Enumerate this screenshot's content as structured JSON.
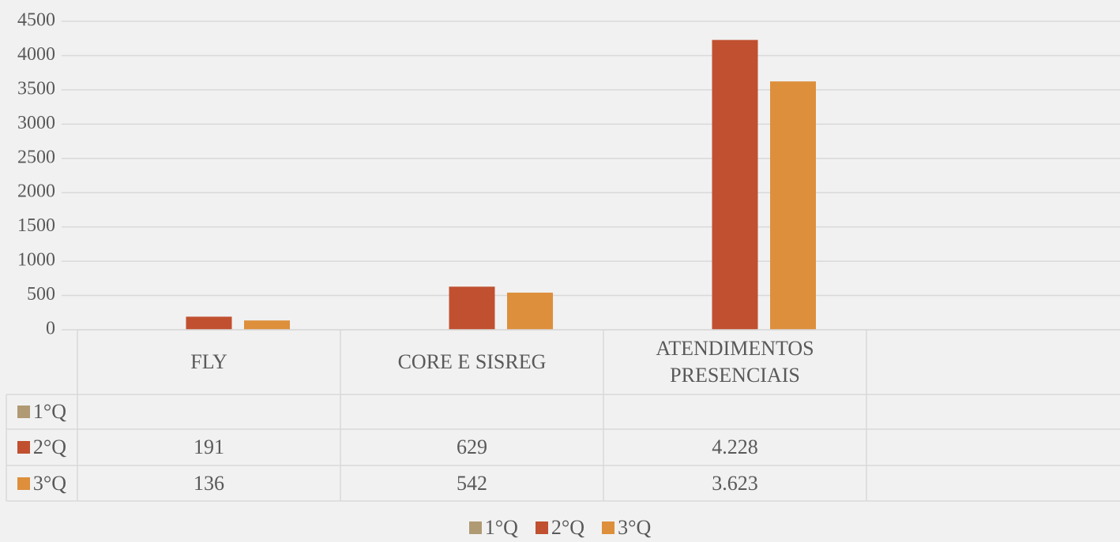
{
  "chart_data": {
    "type": "bar",
    "categories": [
      "FLY",
      "CORE E SISREG",
      "ATENDIMENTOS PRESENCIAIS",
      null
    ],
    "series": [
      {
        "name": "1°Q",
        "color": "#b09a74",
        "values": [
          null,
          null,
          null,
          null
        ]
      },
      {
        "name": "2°Q",
        "color": "#c0502f",
        "values": [
          191,
          629,
          4228,
          null
        ],
        "value_labels": [
          "191",
          "629",
          "4.228",
          null
        ]
      },
      {
        "name": "3°Q",
        "color": "#dd8f3c",
        "values": [
          136,
          542,
          3623,
          null
        ],
        "value_labels": [
          "136",
          "542",
          "3.623",
          null
        ]
      }
    ],
    "ylim": [
      0,
      4500
    ],
    "yticks": [
      0,
      500,
      1000,
      1500,
      2000,
      2500,
      3000,
      3500,
      4000,
      4500
    ],
    "grid": true,
    "data_table": true,
    "legend": "bottom"
  }
}
